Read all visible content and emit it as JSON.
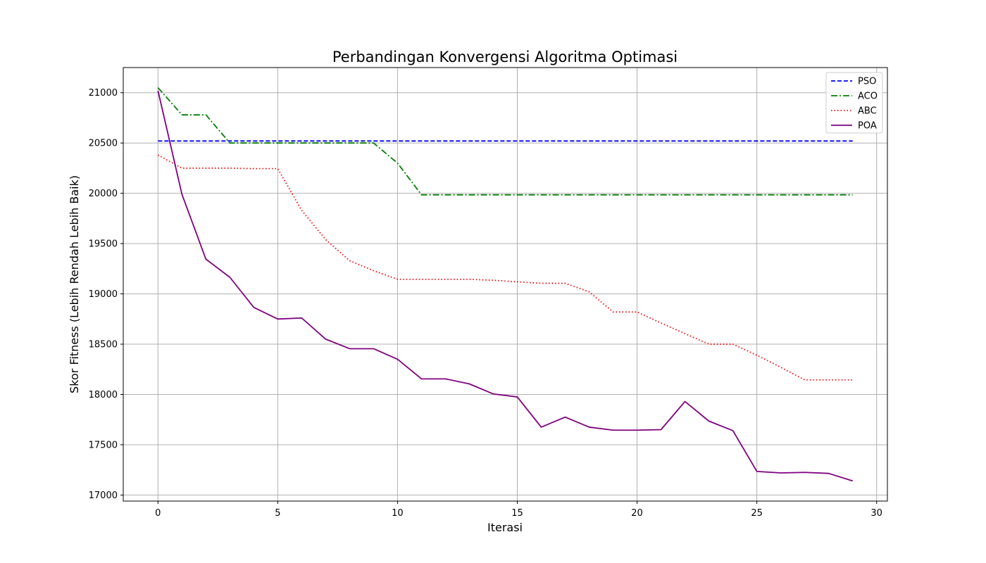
{
  "chart_data": {
    "type": "line",
    "title": "Perbandingan Konvergensi Algoritma Optimasi",
    "xlabel": "Iterasi",
    "ylabel": "Skor Fitness (Lebih Rendah Lebih Baik)",
    "xlim": [
      -1.45,
      30.45
    ],
    "ylim": [
      16940,
      21250
    ],
    "xticks": [
      0,
      5,
      10,
      15,
      20,
      25,
      30
    ],
    "yticks": [
      17000,
      17500,
      18000,
      18500,
      19000,
      19500,
      20000,
      20500,
      21000
    ],
    "grid": true,
    "legend_position": "top-right",
    "x": [
      0,
      1,
      2,
      3,
      4,
      5,
      6,
      7,
      8,
      9,
      10,
      11,
      12,
      13,
      14,
      15,
      16,
      17,
      18,
      19,
      20,
      21,
      22,
      23,
      24,
      25,
      26,
      27,
      28,
      29
    ],
    "series": [
      {
        "name": "PSO",
        "color": "#0000ff",
        "style": "dashed",
        "values": [
          20520,
          20520,
          20520,
          20520,
          20520,
          20520,
          20520,
          20520,
          20520,
          20520,
          20520,
          20520,
          20520,
          20520,
          20520,
          20520,
          20520,
          20520,
          20520,
          20520,
          20520,
          20520,
          20520,
          20520,
          20520,
          20520,
          20520,
          20520,
          20520,
          20520
        ]
      },
      {
        "name": "ACO",
        "color": "#008000",
        "style": "dashdot",
        "values": [
          21050,
          20780,
          20780,
          20500,
          20500,
          20500,
          20500,
          20500,
          20500,
          20500,
          20300,
          19985,
          19985,
          19985,
          19985,
          19985,
          19985,
          19985,
          19985,
          19985,
          19985,
          19985,
          19985,
          19985,
          19985,
          19985,
          19985,
          19985,
          19985,
          19985
        ]
      },
      {
        "name": "ABC",
        "color": "#ff0000",
        "style": "dotted",
        "values": [
          20380,
          20250,
          20250,
          20250,
          20245,
          20245,
          19830,
          19540,
          19330,
          19230,
          19145,
          19145,
          19145,
          19145,
          19135,
          19120,
          19105,
          19105,
          19020,
          18820,
          18820,
          18710,
          18605,
          18500,
          18500,
          18390,
          18270,
          18145,
          18145,
          18145
        ]
      },
      {
        "name": "POA",
        "color": "#800080",
        "style": "solid",
        "values": [
          21020,
          19990,
          19345,
          19165,
          18865,
          18750,
          18760,
          18550,
          18455,
          18455,
          18350,
          18155,
          18155,
          18105,
          18005,
          17975,
          17675,
          17775,
          17675,
          17645,
          17645,
          17650,
          17930,
          17735,
          17640,
          17235,
          17220,
          17225,
          17215,
          17140
        ]
      }
    ]
  }
}
